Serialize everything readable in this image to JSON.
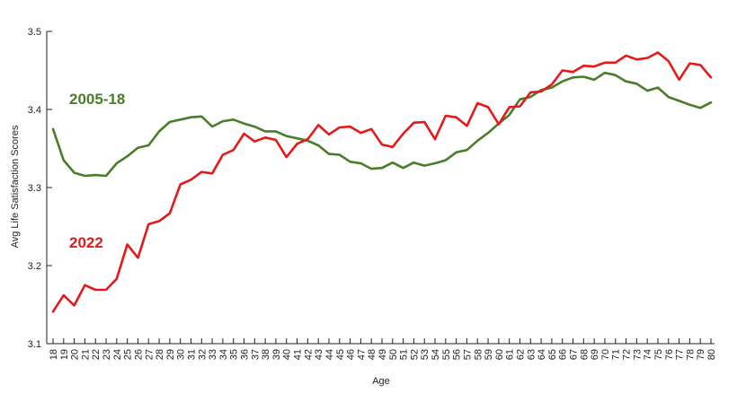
{
  "chart_data": {
    "type": "line",
    "title": "",
    "xlabel": "Age",
    "ylabel": "Avg Life Satisfaction Scores",
    "ylim": [
      3.1,
      3.5
    ],
    "yticks": [
      "3.1",
      "3.2",
      "3.3",
      "3.4",
      "3.5"
    ],
    "grid": false,
    "x": [
      18,
      19,
      20,
      21,
      22,
      23,
      24,
      25,
      26,
      27,
      28,
      29,
      30,
      31,
      32,
      33,
      34,
      35,
      36,
      37,
      38,
      39,
      40,
      41,
      42,
      43,
      44,
      45,
      46,
      47,
      48,
      49,
      50,
      51,
      52,
      53,
      54,
      55,
      56,
      57,
      58,
      59,
      60,
      61,
      62,
      63,
      64,
      65,
      66,
      67,
      68,
      69,
      70,
      71,
      72,
      73,
      74,
      75,
      76,
      77,
      78,
      79,
      80
    ],
    "series": [
      {
        "name": "2005-18",
        "color": "#4a7d2a",
        "values": [
          3.375,
          3.335,
          3.319,
          3.315,
          3.316,
          3.315,
          3.331,
          3.34,
          3.351,
          3.354,
          3.372,
          3.384,
          3.387,
          3.39,
          3.391,
          3.378,
          3.385,
          3.387,
          3.382,
          3.378,
          3.372,
          3.372,
          3.366,
          3.363,
          3.36,
          3.354,
          3.343,
          3.342,
          3.333,
          3.331,
          3.324,
          3.325,
          3.332,
          3.325,
          3.332,
          3.328,
          3.331,
          3.335,
          3.345,
          3.348,
          3.36,
          3.37,
          3.382,
          3.393,
          3.413,
          3.416,
          3.425,
          3.428,
          3.436,
          3.441,
          3.442,
          3.438,
          3.447,
          3.444,
          3.436,
          3.433,
          3.424,
          3.428,
          3.416,
          3.411,
          3.406,
          3.402,
          3.409
        ]
      },
      {
        "name": "2022",
        "color": "#e41a1a",
        "values": [
          3.141,
          3.162,
          3.149,
          3.175,
          3.169,
          3.169,
          3.183,
          3.227,
          3.21,
          3.253,
          3.257,
          3.267,
          3.304,
          3.31,
          3.32,
          3.318,
          3.342,
          3.348,
          3.369,
          3.359,
          3.364,
          3.361,
          3.339,
          3.356,
          3.362,
          3.38,
          3.368,
          3.377,
          3.378,
          3.37,
          3.375,
          3.355,
          3.352,
          3.369,
          3.383,
          3.384,
          3.362,
          3.392,
          3.39,
          3.379,
          3.408,
          3.403,
          3.381,
          3.403,
          3.404,
          3.422,
          3.423,
          3.432,
          3.45,
          3.448,
          3.456,
          3.455,
          3.46,
          3.46,
          3.469,
          3.464,
          3.466,
          3.473,
          3.462,
          3.438,
          3.459,
          3.457,
          3.441
        ]
      }
    ]
  }
}
